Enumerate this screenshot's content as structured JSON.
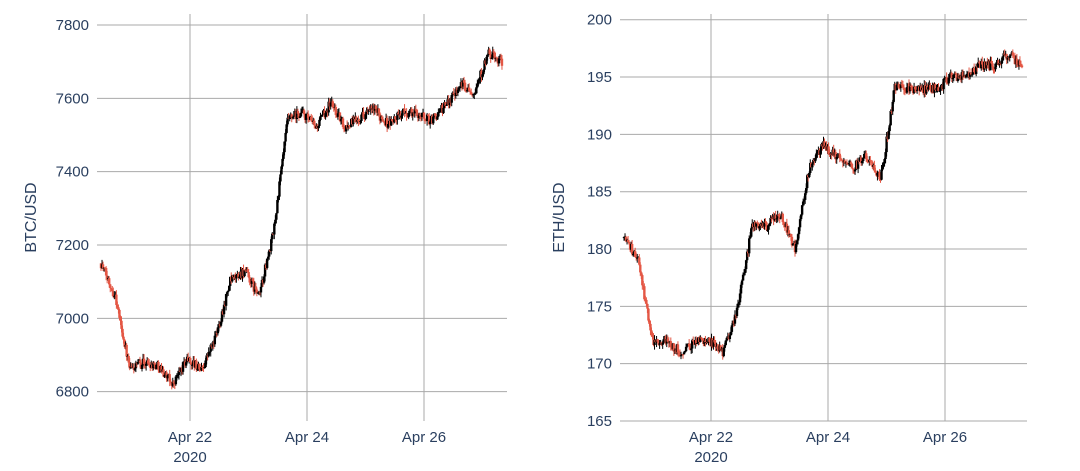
{
  "chart_data": [
    {
      "type": "candlestick",
      "ylabel": "BTC/USD",
      "ylim": [
        6720,
        7830
      ],
      "yticks": [
        6800,
        7000,
        7200,
        7400,
        7600,
        7800
      ],
      "xticks": [
        {
          "label": "Apr 22",
          "sublabel": "2020"
        },
        {
          "label": "Apr 24",
          "sublabel": ""
        },
        {
          "label": "Apr 26",
          "sublabel": ""
        }
      ],
      "grid": true,
      "increasing_color": "#000000",
      "decreasing_color": "#e45745",
      "series": [
        {
          "x": [
            "Apr 20 12:00",
            "Apr 20 18:00",
            "Apr 21 00:00",
            "Apr 21 06:00",
            "Apr 21 12:00",
            "Apr 21 18:00",
            "Apr 22 00:00",
            "Apr 22 06:00",
            "Apr 22 12:00",
            "Apr 22 18:00",
            "Apr 23 00:00",
            "Apr 23 06:00",
            "Apr 23 12:00",
            "Apr 23 18:00",
            "Apr 24 00:00",
            "Apr 24 06:00",
            "Apr 24 12:00",
            "Apr 24 18:00",
            "Apr 25 00:00",
            "Apr 25 06:00",
            "Apr 25 12:00",
            "Apr 25 18:00",
            "Apr 26 00:00",
            "Apr 26 06:00",
            "Apr 26 12:00",
            "Apr 26 18:00",
            "Apr 27 00:00",
            "Apr 27 06:00",
            "Apr 27 12:00"
          ],
          "values": [
            7150,
            7060,
            6860,
            6880,
            6870,
            6820,
            6890,
            6860,
            6950,
            7100,
            7130,
            7060,
            7230,
            7540,
            7560,
            7520,
            7590,
            7520,
            7550,
            7570,
            7530,
            7560,
            7560,
            7540,
            7580,
            7640,
            7620,
            7720,
            7700
          ]
        }
      ]
    },
    {
      "type": "candlestick",
      "ylabel": "ETH/USD",
      "ylim": [
        165,
        200.5
      ],
      "yticks": [
        165,
        170,
        175,
        180,
        185,
        190,
        195,
        200
      ],
      "xticks": [
        {
          "label": "Apr 22",
          "sublabel": "2020"
        },
        {
          "label": "Apr 24",
          "sublabel": ""
        },
        {
          "label": "Apr 26",
          "sublabel": ""
        }
      ],
      "grid": true,
      "increasing_color": "#000000",
      "decreasing_color": "#e45745",
      "series": [
        {
          "x": [
            "Apr 20 12:00",
            "Apr 20 18:00",
            "Apr 21 00:00",
            "Apr 21 06:00",
            "Apr 21 12:00",
            "Apr 21 18:00",
            "Apr 22 00:00",
            "Apr 22 06:00",
            "Apr 22 12:00",
            "Apr 22 18:00",
            "Apr 23 00:00",
            "Apr 23 06:00",
            "Apr 23 12:00",
            "Apr 23 18:00",
            "Apr 24 00:00",
            "Apr 24 06:00",
            "Apr 24 12:00",
            "Apr 24 18:00",
            "Apr 25 00:00",
            "Apr 25 06:00",
            "Apr 25 12:00",
            "Apr 25 18:00",
            "Apr 26 00:00",
            "Apr 26 06:00",
            "Apr 26 12:00",
            "Apr 26 18:00",
            "Apr 27 00:00",
            "Apr 27 06:00",
            "Apr 27 12:00"
          ],
          "values": [
            181,
            179,
            172,
            172,
            171,
            172,
            172,
            171,
            175,
            182,
            182,
            183,
            180,
            187,
            189,
            188,
            187,
            188,
            186,
            194,
            194,
            194,
            194,
            195,
            195,
            196,
            196,
            197,
            196
          ]
        }
      ]
    }
  ]
}
